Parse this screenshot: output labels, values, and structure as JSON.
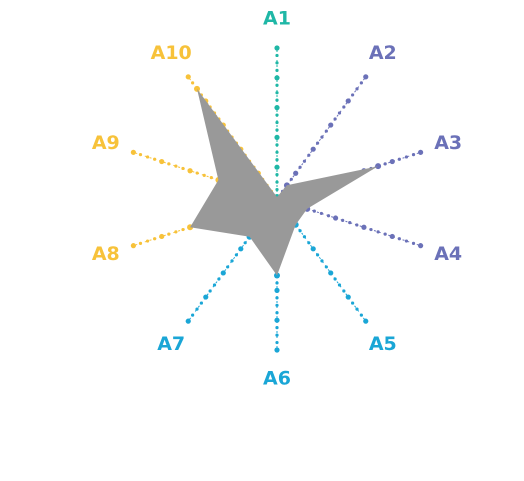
{
  "chart_data": {
    "type": "radar",
    "axis_max": 10,
    "ticks_per_spoke": 10,
    "fill_color": "#999999",
    "axes": [
      {
        "label": "A1",
        "value": 0,
        "color": "#1fb7a6"
      },
      {
        "label": "A2",
        "value": 1,
        "color": "#6b71b8"
      },
      {
        "label": "A3",
        "value": 7,
        "color": "#6b71b8"
      },
      {
        "label": "A4",
        "value": 2,
        "color": "#6b71b8"
      },
      {
        "label": "A5",
        "value": 2,
        "color": "#1aa6d6"
      },
      {
        "label": "A6",
        "value": 5,
        "color": "#1aa6d6"
      },
      {
        "label": "A7",
        "value": 3,
        "color": "#1aa6d6"
      },
      {
        "label": "A8",
        "value": 6,
        "color": "#f7c23a"
      },
      {
        "label": "A9",
        "value": 4,
        "color": "#f7c23a"
      },
      {
        "label": "A10",
        "value": 9,
        "color": "#f7c23a"
      }
    ]
  }
}
